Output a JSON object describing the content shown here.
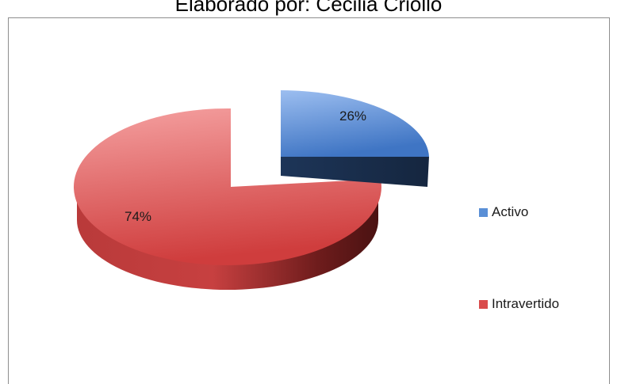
{
  "chart_data": {
    "type": "pie",
    "title": "Elaborado por: Cecilia Criollo",
    "categories": [
      "Activo",
      "Intravertido"
    ],
    "values": [
      26,
      74
    ],
    "data_labels": [
      "26%",
      "74%"
    ],
    "colors": [
      "#5a8fd6",
      "#d94c4c"
    ],
    "legend_position": "right",
    "exploded": true,
    "three_d": true
  }
}
